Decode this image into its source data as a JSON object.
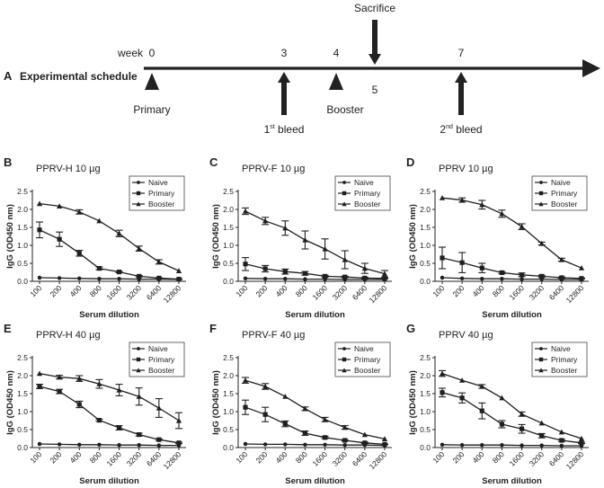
{
  "schedule": {
    "panel_letter": "A",
    "label": "Experimental schedule",
    "week_label": "week",
    "weeks": [
      "0",
      "3",
      "4",
      "5",
      "7"
    ],
    "events": {
      "primary": "Primary",
      "booster": "Booster",
      "sacrifice": "Sacrifice",
      "bleed1_num": "1",
      "bleed1_sup": "st",
      "bleed1_text": " bleed",
      "bleed2_num": "2",
      "bleed2_sup": "nd",
      "bleed2_text": " bleed"
    }
  },
  "colors": {
    "ink": "#1f1f1f",
    "axis": "#222222"
  },
  "chart_data": [
    {
      "letter": "B",
      "title": "PPRV-H 10 µg",
      "type": "line",
      "xlabel": "Serum dilution",
      "ylabel": "IgG (OD450 nm)",
      "categories": [
        "100",
        "200",
        "400",
        "800",
        "1600",
        "3200",
        "6400",
        "12800"
      ],
      "yticks": [
        "0.0",
        "0.5",
        "1.0",
        "1.5",
        "2.0",
        "2.5"
      ],
      "ylim": [
        0,
        2.5
      ],
      "series": [
        {
          "name": "Naive",
          "marker": "circle",
          "values": [
            0.1,
            0.09,
            0.08,
            0.07,
            0.07,
            0.06,
            0.06,
            0.05
          ],
          "errors": [
            0,
            0,
            0,
            0,
            0,
            0,
            0,
            0
          ]
        },
        {
          "name": "Primary",
          "marker": "square",
          "values": [
            1.43,
            1.17,
            0.78,
            0.36,
            0.26,
            0.14,
            0.09,
            0.06
          ],
          "errors": [
            0.22,
            0.2,
            0.08,
            0.04,
            0.02,
            0.02,
            0.01,
            0.01
          ]
        },
        {
          "name": "Booster",
          "marker": "triangle",
          "values": [
            2.16,
            2.09,
            1.93,
            1.68,
            1.33,
            0.91,
            0.54,
            0.29
          ],
          "errors": [
            0,
            0,
            0.06,
            0,
            0.09,
            0.07,
            0.06,
            0
          ]
        }
      ]
    },
    {
      "letter": "C",
      "title": "PPRV-F 10 µg",
      "type": "line",
      "xlabel": "Serum dilution",
      "ylabel": "IgG (OD450 nm)",
      "categories": [
        "100",
        "200",
        "400",
        "800",
        "1600",
        "3200",
        "6400",
        "12800"
      ],
      "yticks": [
        "0.0",
        "0.5",
        "1.0",
        "1.5",
        "2.0",
        "2.5"
      ],
      "ylim": [
        0,
        2.5
      ],
      "series": [
        {
          "name": "Naive",
          "marker": "circle",
          "values": [
            0.08,
            0.07,
            0.07,
            0.06,
            0.06,
            0.05,
            0.05,
            0.05
          ],
          "errors": [
            0,
            0,
            0,
            0,
            0,
            0,
            0,
            0
          ]
        },
        {
          "name": "Primary",
          "marker": "square",
          "values": [
            0.48,
            0.35,
            0.27,
            0.22,
            0.14,
            0.12,
            0.09,
            0.08
          ],
          "errors": [
            0.18,
            0.09,
            0.07,
            0.05,
            0.03,
            0.02,
            0.02,
            0.01
          ]
        },
        {
          "name": "Booster",
          "marker": "triangle",
          "values": [
            1.95,
            1.68,
            1.48,
            1.15,
            0.9,
            0.6,
            0.36,
            0.21
          ],
          "errors": [
            0.09,
            0.1,
            0.2,
            0.25,
            0.28,
            0.25,
            0.14,
            0.09
          ]
        }
      ]
    },
    {
      "letter": "D",
      "title": "PPRV 10 µg",
      "type": "line",
      "xlabel": "Serum dilution",
      "ylabel": "IgG (OD450 nm)",
      "categories": [
        "100",
        "200",
        "400",
        "800",
        "1600",
        "3200",
        "6400",
        "12800"
      ],
      "yticks": [
        "0.0",
        "0.5",
        "1.0",
        "1.5",
        "2.0",
        "2.5"
      ],
      "ylim": [
        0,
        2.5
      ],
      "series": [
        {
          "name": "Naive",
          "marker": "circle",
          "values": [
            0.1,
            0.08,
            0.07,
            0.07,
            0.06,
            0.06,
            0.05,
            0.05
          ],
          "errors": [
            0,
            0,
            0,
            0,
            0,
            0,
            0,
            0
          ]
        },
        {
          "name": "Primary",
          "marker": "square",
          "values": [
            0.65,
            0.52,
            0.37,
            0.24,
            0.18,
            0.14,
            0.1,
            0.08
          ],
          "errors": [
            0.3,
            0.28,
            0.13,
            0.03,
            0.05,
            0.03,
            0.02,
            0.01
          ]
        },
        {
          "name": "Booster",
          "marker": "triangle",
          "values": [
            2.32,
            2.26,
            2.13,
            1.88,
            1.52,
            1.05,
            0.6,
            0.37
          ],
          "errors": [
            0,
            0.06,
            0.12,
            0.1,
            0.08,
            0.04,
            0.04,
            0
          ]
        }
      ]
    },
    {
      "letter": "E",
      "title": "PPRV-H 40 µg",
      "type": "line",
      "xlabel": "Serum dilution",
      "ylabel": "IgG (OD450 nm)",
      "categories": [
        "100",
        "200",
        "400",
        "800",
        "1600",
        "3200",
        "6400",
        "12800"
      ],
      "yticks": [
        "0.0",
        "0.5",
        "1.0",
        "1.5",
        "2.0",
        "2.5"
      ],
      "ylim": [
        0,
        2.5
      ],
      "series": [
        {
          "name": "Naive",
          "marker": "circle",
          "values": [
            0.1,
            0.09,
            0.08,
            0.08,
            0.07,
            0.07,
            0.06,
            0.06
          ],
          "errors": [
            0,
            0,
            0,
            0,
            0,
            0,
            0,
            0
          ]
        },
        {
          "name": "Primary",
          "marker": "square",
          "values": [
            1.7,
            1.56,
            1.2,
            0.76,
            0.55,
            0.36,
            0.22,
            0.13
          ],
          "errors": [
            0.06,
            0.06,
            0.09,
            0.03,
            0.06,
            0.04,
            0.02,
            0.02
          ]
        },
        {
          "name": "Booster",
          "marker": "triangle",
          "values": [
            2.06,
            1.96,
            1.92,
            1.77,
            1.6,
            1.42,
            1.1,
            0.75
          ],
          "errors": [
            0,
            0.05,
            0.08,
            0.12,
            0.16,
            0.24,
            0.26,
            0.22
          ]
        }
      ]
    },
    {
      "letter": "F",
      "title": "PPRV-F 40 µg",
      "type": "line",
      "xlabel": "Serum dilution",
      "ylabel": "IgG (OD450 nm)",
      "categories": [
        "100",
        "200",
        "400",
        "800",
        "1600",
        "3200",
        "6400",
        "12800"
      ],
      "yticks": [
        "0.0",
        "0.5",
        "1.0",
        "1.5",
        "2.0",
        "2.5"
      ],
      "ylim": [
        0,
        2.5
      ],
      "series": [
        {
          "name": "Naive",
          "marker": "circle",
          "values": [
            0.1,
            0.09,
            0.09,
            0.08,
            0.08,
            0.07,
            0.07,
            0.06
          ],
          "errors": [
            0,
            0,
            0,
            0,
            0,
            0,
            0,
            0
          ]
        },
        {
          "name": "Primary",
          "marker": "square",
          "values": [
            1.12,
            0.92,
            0.66,
            0.4,
            0.28,
            0.2,
            0.13,
            0.09
          ],
          "errors": [
            0.2,
            0.2,
            0.08,
            0.06,
            0.03,
            0.02,
            0.02,
            0.01
          ]
        },
        {
          "name": "Booster",
          "marker": "triangle",
          "values": [
            1.87,
            1.7,
            1.42,
            1.08,
            0.78,
            0.56,
            0.36,
            0.24
          ],
          "errors": [
            0.08,
            0.08,
            0,
            0.05,
            0.06,
            0.05,
            0,
            0
          ]
        }
      ]
    },
    {
      "letter": "G",
      "title": "PPRV 40 µg",
      "type": "line",
      "xlabel": "Serum dilution",
      "ylabel": "IgG (OD450 nm)",
      "categories": [
        "100",
        "200",
        "400",
        "800",
        "1600",
        "3200",
        "6400",
        "12800"
      ],
      "yticks": [
        "0.0",
        "0.5",
        "1.0",
        "1.5",
        "2.0",
        "2.5"
      ],
      "ylim": [
        0,
        2.5
      ],
      "series": [
        {
          "name": "Naive",
          "marker": "circle",
          "values": [
            0.08,
            0.07,
            0.07,
            0.07,
            0.06,
            0.06,
            0.05,
            0.05
          ],
          "errors": [
            0,
            0,
            0,
            0,
            0,
            0,
            0,
            0
          ]
        },
        {
          "name": "Primary",
          "marker": "square",
          "values": [
            1.53,
            1.38,
            1.02,
            0.65,
            0.52,
            0.33,
            0.2,
            0.13
          ],
          "errors": [
            0.12,
            0.14,
            0.22,
            0.1,
            0.12,
            0.06,
            0.03,
            0.02
          ]
        },
        {
          "name": "Booster",
          "marker": "triangle",
          "values": [
            2.06,
            1.87,
            1.7,
            1.38,
            0.93,
            0.68,
            0.43,
            0.25
          ],
          "errors": [
            0.08,
            0,
            0.05,
            0,
            0.06,
            0,
            0,
            0
          ]
        }
      ]
    }
  ]
}
